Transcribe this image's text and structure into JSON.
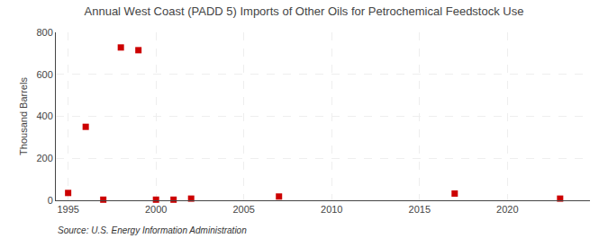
{
  "chart_data": {
    "type": "scatter",
    "title": "Annual West Coast (PADD 5) Imports of Other Oils for Petrochemical Feedstock Use",
    "ylabel": "Thousand Barrels",
    "annotations": [
      "Source: U.S. Energy Information Administration"
    ],
    "x": [
      1995,
      1996,
      1997,
      1998,
      1999,
      2000,
      2001,
      2002,
      2007,
      2017,
      2023
    ],
    "values": [
      35,
      350,
      3,
      728,
      715,
      3,
      3,
      8,
      18,
      32,
      8
    ],
    "color": "#cc0000",
    "marker": "square",
    "xlim": [
      1994.3,
      2024.7
    ],
    "xticks": [
      1995,
      2000,
      2005,
      2010,
      2015,
      2020
    ],
    "ylim": [
      0,
      800
    ],
    "yticks": [
      0,
      200,
      400,
      600,
      800
    ],
    "grid": true
  }
}
